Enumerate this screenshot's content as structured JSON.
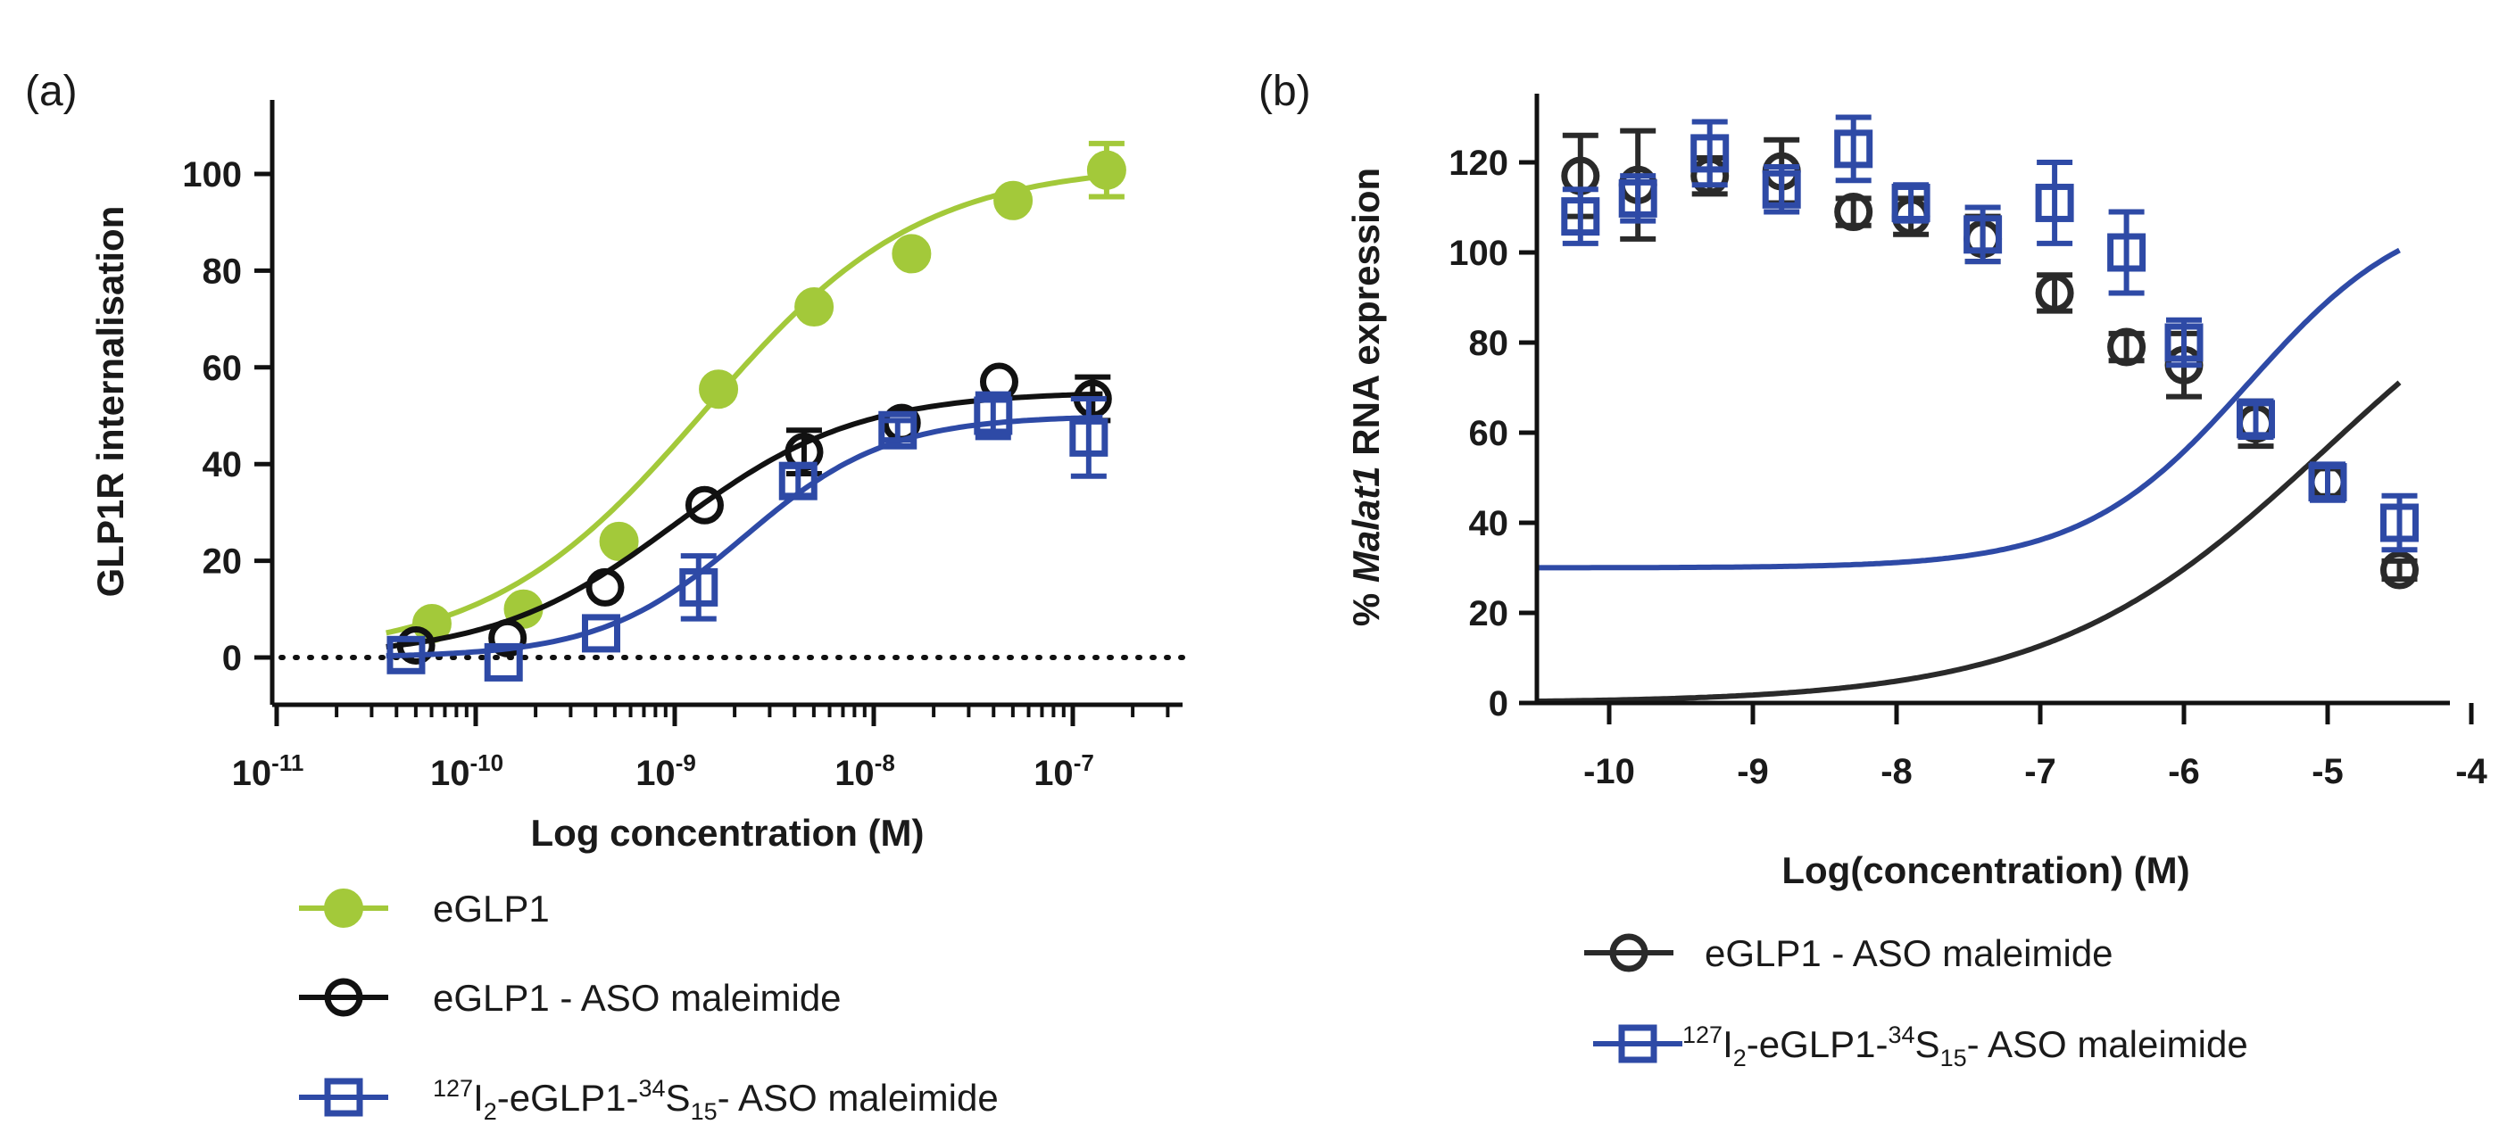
{
  "chart_data": [
    {
      "panel_label": "(a)",
      "type": "scatter",
      "xscale": "log",
      "xlabel": "Log concentration (M)",
      "ylabel": "GLP1R internalisation",
      "xlim": [
        -11,
        -6.5
      ],
      "ylim": [
        -10,
        115
      ],
      "x_ticks": [
        {
          "base": "10",
          "exp": "-11",
          "v": -11
        },
        {
          "base": "10",
          "exp": "-10",
          "v": -10
        },
        {
          "base": "10",
          "exp": "-9",
          "v": -9
        },
        {
          "base": "10",
          "exp": "-8",
          "v": -8
        },
        {
          "base": "10",
          "exp": "-7",
          "v": -7
        }
      ],
      "y_ticks": [
        "0",
        "20",
        "40",
        "60",
        "80",
        "100"
      ],
      "baseline": 0,
      "series": [
        {
          "name": "eGLP1",
          "color": "#a3c93a",
          "marker": "filled-circle",
          "points": [
            {
              "x": -10.22,
              "y": 7,
              "err": 0
            },
            {
              "x": -9.76,
              "y": 10,
              "err": 0
            },
            {
              "x": -9.28,
              "y": 24,
              "err": 0
            },
            {
              "x": -8.78,
              "y": 55.5,
              "err": 0
            },
            {
              "x": -8.3,
              "y": 72.5,
              "err": 0
            },
            {
              "x": -7.81,
              "y": 83.5,
              "err": 0
            },
            {
              "x": -7.3,
              "y": 94.5,
              "err": 0
            },
            {
              "x": -6.83,
              "y": 100.8,
              "err": 5.5
            }
          ],
          "fit": {
            "bottom": 0,
            "top": 102,
            "logEC50": -8.85,
            "hill": 0.8
          }
        },
        {
          "name": "eGLP1 - ASO maleimide",
          "color": "#111111",
          "marker": "open-circle",
          "points": [
            {
              "x": -10.3,
              "y": 2.5,
              "err": 0
            },
            {
              "x": -9.84,
              "y": 4,
              "err": 0
            },
            {
              "x": -9.35,
              "y": 14.5,
              "err": 0
            },
            {
              "x": -8.85,
              "y": 31.5,
              "err": 0
            },
            {
              "x": -8.35,
              "y": 42.5,
              "err": 4.5
            },
            {
              "x": -7.86,
              "y": 48.5,
              "err": 0
            },
            {
              "x": -7.37,
              "y": 57,
              "err": 0
            },
            {
              "x": -6.9,
              "y": 53.5,
              "err": 4.5
            }
          ],
          "fit": {
            "bottom": 0,
            "top": 55,
            "logEC50": -9.0,
            "hill": 0.95
          }
        },
        {
          "name": "127I2-eGLP1-34S15- ASO maleimide",
          "color": "#2e4aa6",
          "marker": "open-square",
          "points": [
            {
              "x": -10.35,
              "y": 0.5,
              "err": 0
            },
            {
              "x": -9.86,
              "y": -1,
              "err": 0
            },
            {
              "x": -9.37,
              "y": 5,
              "err": 0
            },
            {
              "x": -8.88,
              "y": 14.5,
              "err": 6.5
            },
            {
              "x": -8.38,
              "y": 36.5,
              "err": 3
            },
            {
              "x": -7.88,
              "y": 47,
              "err": 2
            },
            {
              "x": -7.4,
              "y": 50,
              "err": 4.5
            },
            {
              "x": -6.92,
              "y": 45.5,
              "err": 8
            }
          ],
          "fit": {
            "bottom": 0,
            "top": 50,
            "logEC50": -8.65,
            "hill": 1.2
          }
        }
      ],
      "legend": [
        {
          "parts": [
            {
              "t": "eGLP1"
            }
          ]
        },
        {
          "parts": [
            {
              "t": "eGLP1 - ASO maleimide"
            }
          ]
        },
        {
          "parts": [
            {
              "t": "127",
              "s": "sup"
            },
            {
              "t": "I"
            },
            {
              "t": "2",
              "s": "sub"
            },
            {
              "t": "-eGLP1-"
            },
            {
              "t": "34",
              "s": "sup"
            },
            {
              "t": "S"
            },
            {
              "t": "15",
              "s": "sub"
            },
            {
              "t": "- ASO maleimide"
            }
          ]
        }
      ]
    },
    {
      "panel_label": "(b)",
      "type": "scatter",
      "xlabel": "Log(concentration) (M)",
      "ylabel_parts": [
        {
          "t": "% "
        },
        {
          "t": "Malat1",
          "style": "italic"
        },
        {
          "t": "  RNA expression"
        }
      ],
      "xlim": [
        -10.5,
        -4
      ],
      "ylim": [
        0,
        135
      ],
      "x_ticks": [
        "-10",
        "-9",
        "-8",
        "-7",
        "-6",
        "-5",
        "-4"
      ],
      "y_ticks": [
        "0",
        "20",
        "40",
        "60",
        "80",
        "100",
        "120"
      ],
      "series": [
        {
          "name": "eGLP1 - ASO maleimide",
          "color": "#2a2a2a",
          "marker": "open-circle",
          "points": [
            {
              "x": -10.2,
              "y": 117,
              "err": 9
            },
            {
              "x": -9.8,
              "y": 115,
              "err": 12
            },
            {
              "x": -9.3,
              "y": 117,
              "err": 4
            },
            {
              "x": -8.8,
              "y": 118,
              "err": 7
            },
            {
              "x": -8.3,
              "y": 109,
              "err": 3
            },
            {
              "x": -7.9,
              "y": 108,
              "err": 4
            },
            {
              "x": -7.4,
              "y": 103,
              "err": 5
            },
            {
              "x": -6.9,
              "y": 91,
              "err": 4
            },
            {
              "x": -6.4,
              "y": 79,
              "err": 3
            },
            {
              "x": -6.0,
              "y": 75,
              "err": 7
            },
            {
              "x": -5.5,
              "y": 62,
              "err": 5
            },
            {
              "x": -5.0,
              "y": 49,
              "err": 3
            },
            {
              "x": -4.5,
              "y": 29.5,
              "err": 2
            }
          ],
          "fit": {
            "bottom": 0,
            "top": 113.5,
            "logEC50": -5.0,
            "hill": 0.45
          }
        },
        {
          "name": "127I2-eGLP1-34S15- ASO maleimide",
          "color": "#2e4aa6",
          "marker": "open-square",
          "points": [
            {
              "x": -10.2,
              "y": 108,
              "err": 6
            },
            {
              "x": -9.8,
              "y": 112,
              "err": 5
            },
            {
              "x": -9.3,
              "y": 122,
              "err": 7
            },
            {
              "x": -8.8,
              "y": 114,
              "err": 5
            },
            {
              "x": -8.3,
              "y": 123,
              "err": 7
            },
            {
              "x": -7.9,
              "y": 111,
              "err": 4
            },
            {
              "x": -7.4,
              "y": 104,
              "err": 6
            },
            {
              "x": -6.9,
              "y": 111,
              "err": 9
            },
            {
              "x": -6.4,
              "y": 100,
              "err": 9
            },
            {
              "x": -6.0,
              "y": 80,
              "err": 5
            },
            {
              "x": -5.5,
              "y": 63,
              "err": 4
            },
            {
              "x": -5.0,
              "y": 49,
              "err": 4
            },
            {
              "x": -4.5,
              "y": 40,
              "err": 6
            }
          ],
          "fit": {
            "bottom": 30,
            "top": 112,
            "logEC50": -5.55,
            "hill": 0.75
          }
        }
      ],
      "legend": [
        {
          "parts": [
            {
              "t": "eGLP1 - ASO maleimide"
            }
          ]
        },
        {
          "parts": [
            {
              "t": "127",
              "s": "sup"
            },
            {
              "t": "I"
            },
            {
              "t": "2",
              "s": "sub"
            },
            {
              "t": "-eGLP1-"
            },
            {
              "t": "34",
              "s": "sup"
            },
            {
              "t": "S"
            },
            {
              "t": "15",
              "s": "sub"
            },
            {
              "t": "- ASO maleimide"
            }
          ]
        }
      ]
    }
  ]
}
